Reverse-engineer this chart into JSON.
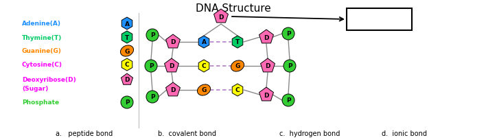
{
  "title": "DNA Structure",
  "title_fontsize": 11,
  "colors": {
    "A": "#1e90ff",
    "T": "#00cc66",
    "G": "#ff8800",
    "C": "#ffff00",
    "D": "#ff69b4",
    "P": "#32cd32",
    "bond_hydrogen": "#cc88cc",
    "bond_covalent": "#888888",
    "bg": "#ffffff"
  },
  "legend": [
    {
      "label": "Adenine(A)",
      "lcolor": "#1e90ff",
      "shape": "hex",
      "fcolor": "#1e90ff",
      "letter": "A"
    },
    {
      "label": "Thymine(T)",
      "lcolor": "#00cc66",
      "shape": "hex",
      "fcolor": "#00cc66",
      "letter": "T"
    },
    {
      "label": "Guanine(G)",
      "lcolor": "#ff8800",
      "shape": "blob",
      "fcolor": "#ff8800",
      "letter": "G"
    },
    {
      "label": "Cytosine(C)",
      "lcolor": "#ff00ff",
      "shape": "hex",
      "fcolor": "#ffff00",
      "letter": "C"
    },
    {
      "label": "Deoxyribose(D)",
      "lcolor": "#ff00ff",
      "shape": "pent",
      "fcolor": "#ff69b4",
      "letter": "D"
    },
    {
      "label": "(Sugar)",
      "lcolor": "#ff00ff",
      "shape": "none",
      "fcolor": "",
      "letter": ""
    },
    {
      "label": "Phosphate",
      "lcolor": "#32cd32",
      "shape": "circle",
      "fcolor": "#32cd32",
      "letter": "P"
    }
  ],
  "answers": [
    {
      "text": "a.   peptide bond",
      "xf": 0.115
    },
    {
      "text": "b.  covalent bond",
      "xf": 0.325
    },
    {
      "text": "c.  hydrogen bond",
      "xf": 0.575
    },
    {
      "text": "d.  ionic bond",
      "xf": 0.785
    }
  ]
}
